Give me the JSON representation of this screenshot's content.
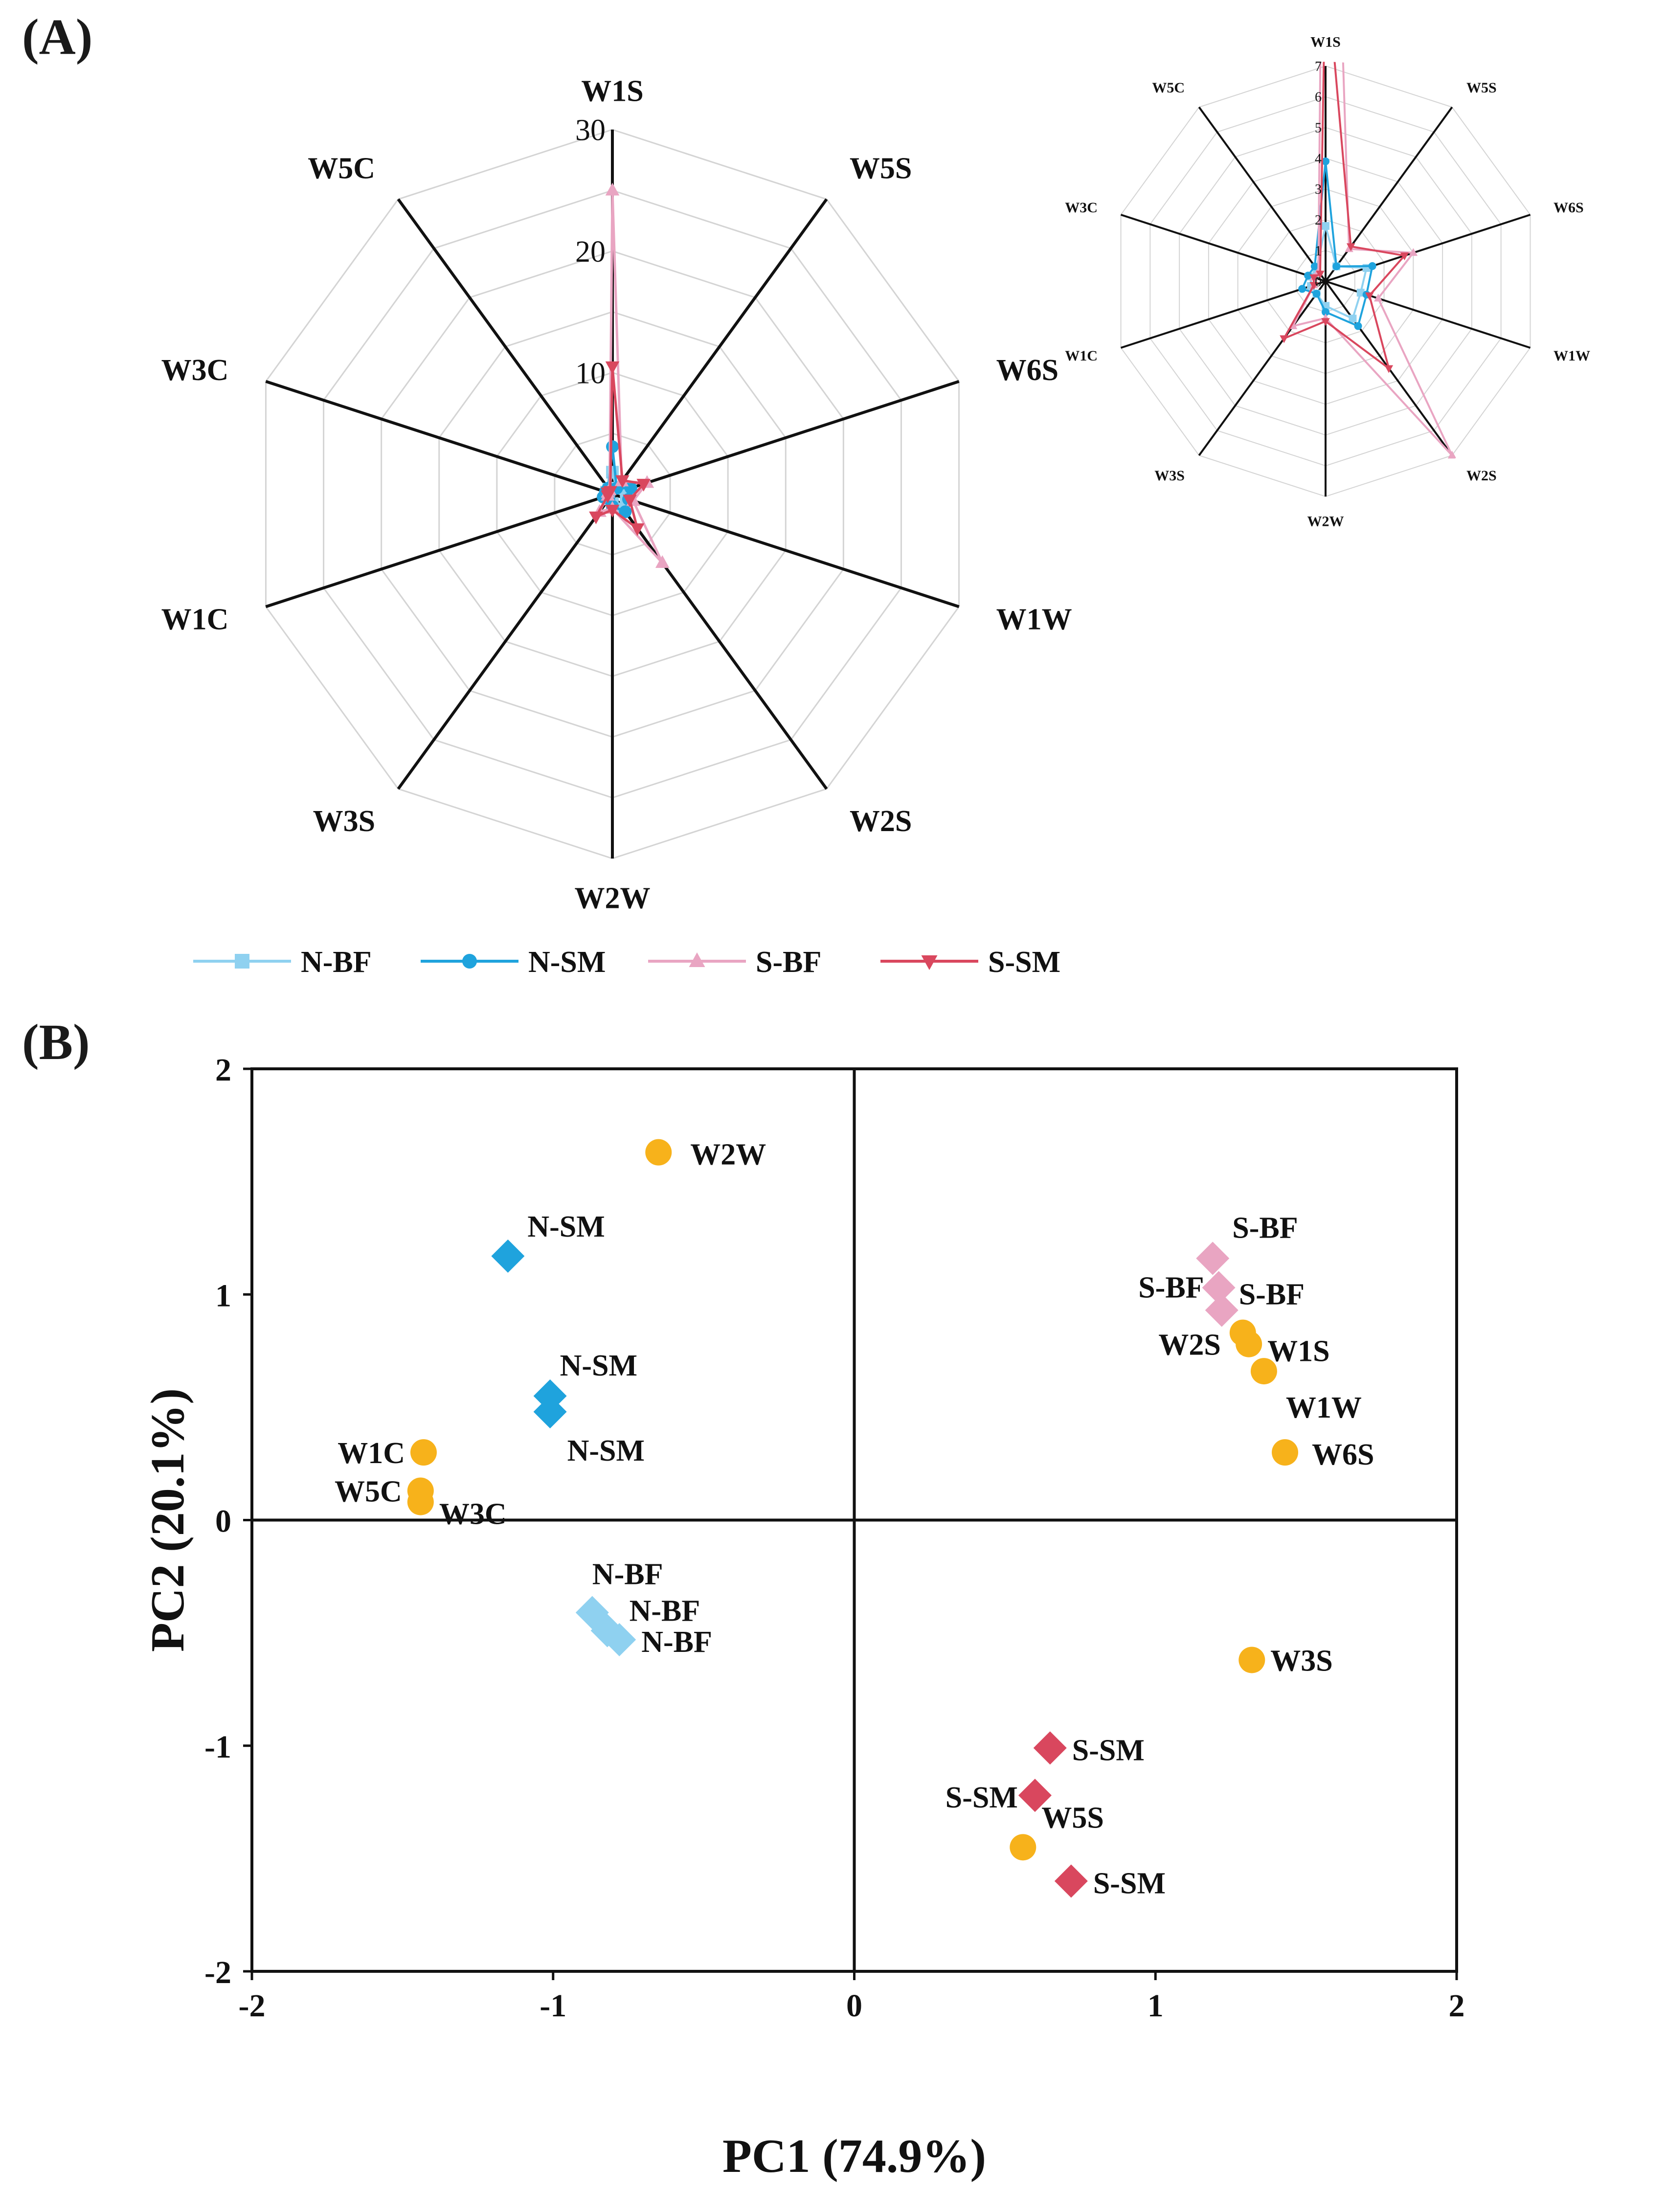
{
  "panels": {
    "a_label": "(A)",
    "b_label": "(B)"
  },
  "colors": {
    "N-BF": "#8fd1f0",
    "N-SM": "#1fa3dd",
    "S-BF": "#e9a5c2",
    "S-SM": "#d9475e",
    "loading": "#f7b21b"
  },
  "chart_data": [
    {
      "type": "radar",
      "panel": "A",
      "axes": [
        "W1S",
        "W5S",
        "W6S",
        "W1W",
        "W2S",
        "W2W",
        "W3S",
        "W1C",
        "W3C",
        "W5C"
      ],
      "r_max": 30,
      "r_ticks": [
        10,
        20,
        30
      ],
      "legend_position": "bottom",
      "series": [
        {
          "name": "N-BF",
          "marker": "square",
          "values": [
            1.8,
            0.6,
            1.4,
            1.2,
            1.5,
            0.8,
            0.5,
            0.5,
            0.5,
            0.5
          ]
        },
        {
          "name": "N-SM",
          "marker": "circle",
          "values": [
            3.9,
            0.6,
            1.6,
            1.4,
            1.8,
            1.0,
            0.5,
            0.8,
            0.6,
            0.6
          ]
        },
        {
          "name": "S-BF",
          "marker": "triangle-up",
          "values": [
            25.0,
            1.3,
            3.0,
            1.8,
            7.0,
            1.2,
            1.8,
            0.4,
            0.4,
            0.4
          ]
        },
        {
          "name": "S-SM",
          "marker": "triangle-down",
          "values": [
            10.5,
            1.4,
            2.7,
            1.5,
            3.5,
            1.3,
            2.3,
            0.4,
            0.4,
            0.3
          ]
        }
      ]
    },
    {
      "type": "radar",
      "panel": "A-inset",
      "axes": [
        "W1S",
        "W5S",
        "W6S",
        "W1W",
        "W2S",
        "W2W",
        "W3S",
        "W1C",
        "W3C",
        "W5C"
      ],
      "r_max": 7,
      "r_ticks": [
        0,
        1,
        2,
        3,
        4,
        5,
        6,
        7
      ],
      "series": [
        {
          "name": "N-BF",
          "values": [
            1.8,
            0.6,
            1.4,
            1.2,
            1.5,
            0.8,
            0.5,
            0.5,
            0.5,
            0.5
          ]
        },
        {
          "name": "N-SM",
          "values": [
            3.9,
            0.6,
            1.6,
            1.4,
            1.8,
            1.0,
            0.5,
            0.8,
            0.6,
            0.6
          ]
        },
        {
          "name": "S-BF",
          "values": [
            25.0,
            1.3,
            3.0,
            1.8,
            7.0,
            1.2,
            1.8,
            0.4,
            0.4,
            0.4
          ]
        },
        {
          "name": "S-SM",
          "values": [
            10.5,
            1.4,
            2.7,
            1.5,
            3.5,
            1.3,
            2.3,
            0.4,
            0.4,
            0.3
          ]
        }
      ]
    },
    {
      "type": "scatter",
      "panel": "B",
      "xlabel": "PC1 (74.9%)",
      "ylabel": "PC2 (20.1%)",
      "xlim": [
        -2,
        2
      ],
      "ylim": [
        -2,
        2
      ],
      "xticks": [
        -2,
        -1,
        0,
        1,
        2
      ],
      "yticks": [
        -2,
        -1,
        0,
        1,
        2
      ],
      "scores": [
        {
          "label": "N-SM",
          "group": "N-SM",
          "x": -1.15,
          "y": 1.17
        },
        {
          "label": "N-SM",
          "group": "N-SM",
          "x": -1.01,
          "y": 0.55
        },
        {
          "label": "N-SM",
          "group": "N-SM",
          "x": -1.01,
          "y": 0.48
        },
        {
          "label": "N-BF",
          "group": "N-BF",
          "x": -0.87,
          "y": -0.41
        },
        {
          "label": "N-BF",
          "group": "N-BF",
          "x": -0.82,
          "y": -0.49
        },
        {
          "label": "N-BF",
          "group": "N-BF",
          "x": -0.78,
          "y": -0.53
        },
        {
          "label": "S-BF",
          "group": "S-BF",
          "x": 1.19,
          "y": 1.16
        },
        {
          "label": "S-BF",
          "group": "S-BF",
          "x": 1.21,
          "y": 1.03
        },
        {
          "label": "S-BF",
          "group": "S-BF",
          "x": 1.22,
          "y": 0.93
        },
        {
          "label": "S-SM",
          "group": "S-SM",
          "x": 0.65,
          "y": -1.01
        },
        {
          "label": "S-SM",
          "group": "S-SM",
          "x": 0.6,
          "y": -1.22
        },
        {
          "label": "S-SM",
          "group": "S-SM",
          "x": 0.72,
          "y": -1.6
        }
      ],
      "loadings": [
        {
          "label": "W2W",
          "x": -0.65,
          "y": 1.63
        },
        {
          "label": "W1C",
          "x": -1.43,
          "y": 0.3
        },
        {
          "label": "W5C",
          "x": -1.44,
          "y": 0.13
        },
        {
          "label": "W3C",
          "x": -1.44,
          "y": 0.08
        },
        {
          "label": "W2S",
          "x": 1.29,
          "y": 0.83
        },
        {
          "label": "W1S",
          "x": 1.31,
          "y": 0.78
        },
        {
          "label": "W1W",
          "x": 1.36,
          "y": 0.66
        },
        {
          "label": "W6S",
          "x": 1.43,
          "y": 0.3
        },
        {
          "label": "W3S",
          "x": 1.32,
          "y": -0.62
        },
        {
          "label": "W5S",
          "x": 0.56,
          "y": -1.45
        }
      ]
    }
  ]
}
